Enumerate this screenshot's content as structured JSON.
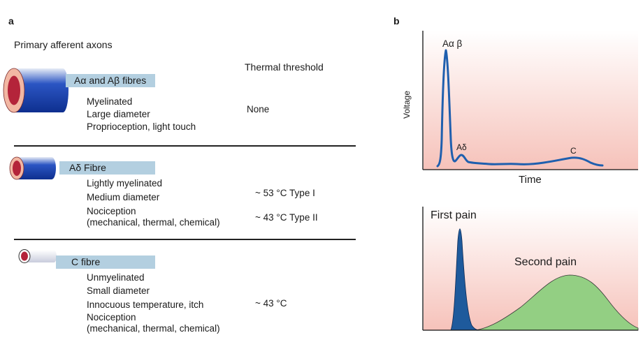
{
  "panel_a": {
    "letter": "a",
    "heading": "Primary afferent axons",
    "threshold_header": "Thermal threshold",
    "fibres": [
      {
        "band_label": "Aα and Aβ fibres",
        "properties": [
          "Myelinated",
          "Large diameter",
          "Proprioception, light touch"
        ],
        "thresholds": [
          "None"
        ]
      },
      {
        "band_label": "Aδ Fibre",
        "properties": [
          "Lightly myelinated",
          "Medium diameter",
          "Nociception",
          "(mechanical, thermal, chemical)"
        ],
        "thresholds": [
          "~ 53 °C Type I",
          "~ 43 °C Type II"
        ]
      },
      {
        "band_label": "C fibre",
        "properties": [
          "Unmyelinated",
          "Small diameter",
          "Innocuous temperature, itch",
          "Nociception",
          "(mechanical, thermal, chemical)"
        ],
        "thresholds": [
          "~ 43 °C"
        ]
      }
    ]
  },
  "panel_b": {
    "letter": "b",
    "colors": {
      "background_pink": "#f6c7c0",
      "trace_blue": "#1f5fae",
      "first_pain_blue": "#1e5a9c",
      "second_pain_green": "#93cf83"
    },
    "top_plot": {
      "ylabel": "Voltage",
      "xlabel": "Time",
      "peak_labels": [
        "Aα β",
        "Aδ",
        "C"
      ]
    },
    "bottom_plot": {
      "labels": [
        "First pain",
        "Second pain"
      ]
    }
  }
}
